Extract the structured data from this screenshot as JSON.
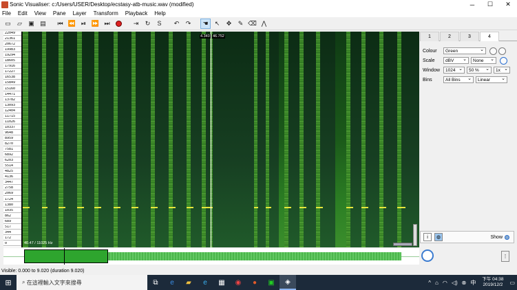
{
  "window": {
    "title": "Sonic Visualiser: c:/Users/USER/Desktop/ecstasy-atb-music.wav (modified)",
    "minimize": "─",
    "maximize": "☐",
    "close": "✕"
  },
  "menu": [
    "File",
    "Edit",
    "View",
    "Pane",
    "Layer",
    "Transform",
    "Playback",
    "Help"
  ],
  "toolbar": {
    "icons": [
      "new-icon",
      "open-icon",
      "save-icon",
      "save-as-icon",
      "rewind-start-icon",
      "rewind-icon",
      "play-pause-icon",
      "fast-forward-icon",
      "fast-forward-end-icon",
      "record-icon",
      "play-selection-icon",
      "loop-icon",
      "solo-icon",
      "undo-icon",
      "redo-icon",
      "navigate-icon",
      "select-icon",
      "move-icon",
      "draw-icon",
      "erase-icon",
      "measure-icon"
    ]
  },
  "main": {
    "cursor_time_left": "4.340",
    "cursor_time_right": "46.752",
    "freq_readout": "40.47 / 11025 Hz",
    "scale_labels": [
      "22049",
      "21361",
      "20672",
      "19983",
      "19294",
      "18605",
      "17916",
      "17227",
      "16538",
      "15849",
      "15160",
      "14471",
      "13782",
      "13093",
      "12404",
      "11715",
      "11026",
      "10337",
      "9648",
      "8959",
      "8270",
      "7581",
      "6892",
      "6203",
      "5514",
      "4825",
      "4136",
      "3447",
      "2758",
      "2069",
      "1724",
      "1380",
      "1035",
      "862",
      "689",
      "517",
      "344",
      "172",
      "0"
    ]
  },
  "panel": {
    "tabs": [
      "1",
      "2",
      "3",
      "4"
    ],
    "colour_label": "Colour",
    "colour_value": "Green",
    "scale_label": "Scale",
    "scale_value": "dBV",
    "scale_norm": "None",
    "window_label": "Window",
    "window_size": "1024",
    "window_overlap": "50 %",
    "window_oversample": "1x",
    "bins_label": "Bins",
    "bins_value": "All Bins",
    "bins_scale": "Linear",
    "show_label": "Show"
  },
  "status": {
    "text": "Visible: 0.000 to 9.020 (duration 9.020)"
  },
  "taskbar": {
    "search_placeholder": "在這裡輸入文字來搜尋",
    "time": "下午 04:38",
    "date": "2019/12/2"
  }
}
